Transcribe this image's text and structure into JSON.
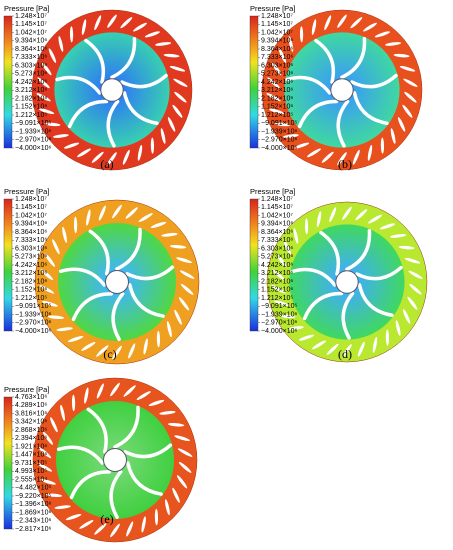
{
  "panels": [
    {
      "label": "(a)",
      "legend": {
        "title": "Pressure [Pa]",
        "labels": [
          "1.248×10⁷",
          "1.145×10⁷",
          "1.042×10⁷",
          "9.394×10⁶",
          "8.364×10⁶",
          "7.333×10⁶",
          "6.303×10⁶",
          "5.273×10⁶",
          "4.242×10⁶",
          "3.212×10⁶",
          "2.182×10⁶",
          "1.152×10⁶",
          "1.212×10⁵",
          "−9.091×10⁵",
          "−1.939×10⁶",
          "−2.970×10⁶",
          "−4.000×10⁶"
        ]
      }
    },
    {
      "label": "(b)",
      "legend": {
        "title": "Pressure [Pa]",
        "labels": [
          "1.248×10⁷",
          "1.145×10⁷",
          "1.042×10⁷",
          "9.394×10⁶",
          "8.364×10⁶",
          "7.333×10⁶",
          "6.303×10⁶",
          "5.273×10⁶",
          "4.242×10⁶",
          "3.212×10⁶",
          "2.182×10⁶",
          "1.152×10⁶",
          "1.212×10⁵",
          "−9.091×10⁵",
          "−1.939×10⁶",
          "−2.970×10⁶",
          "−4.000×10⁶"
        ]
      }
    },
    {
      "label": "(c)",
      "legend": {
        "title": "Pressure [Pa]",
        "labels": [
          "1.248×10⁷",
          "1.145×10⁷",
          "1.042×10⁷",
          "9.394×10⁶",
          "8.364×10⁶",
          "7.333×10⁶",
          "6.303×10⁶",
          "5.273×10⁶",
          "4.242×10⁶",
          "3.212×10⁶",
          "2.182×10⁶",
          "1.152×10⁶",
          "1.212×10⁵",
          "−9.091×10⁵",
          "−1.939×10⁶",
          "−2.970×10⁶",
          "−4.000×10⁶"
        ]
      }
    },
    {
      "label": "(d)",
      "legend": {
        "title": "Pressure [Pa]",
        "labels": [
          "1.248×10⁷",
          "1.145×10⁷",
          "1.042×10⁷",
          "9.394×10⁶",
          "8.364×10⁶",
          "7.333×10⁶",
          "6.303×10⁶",
          "5.273×10⁶",
          "4.242×10⁶",
          "3.212×10⁶",
          "2.182×10⁶",
          "1.152×10⁶",
          "1.212×10⁵",
          "−9.091×10⁵",
          "−1.939×10⁶",
          "−2.970×10⁶",
          "−4.000×10⁶"
        ]
      }
    },
    {
      "label": "(e)",
      "legend": {
        "title": "Pressure [Pa]",
        "labels": [
          "4.763×10⁶",
          "4.289×10⁶",
          "3.816×10⁶",
          "3.342×10⁶",
          "2.868×10⁶",
          "2.394×10⁶",
          "1.921×10⁶",
          "1.447×10⁶",
          "9.731×10⁵",
          "4.993×10⁵",
          "2.555×10⁴",
          "−4.482×10⁵",
          "−9.220×10⁵",
          "−1.396×10⁶",
          "−1.869×10⁶",
          "−2.343×10⁶",
          "−2.817×10⁶"
        ]
      }
    }
  ]
}
